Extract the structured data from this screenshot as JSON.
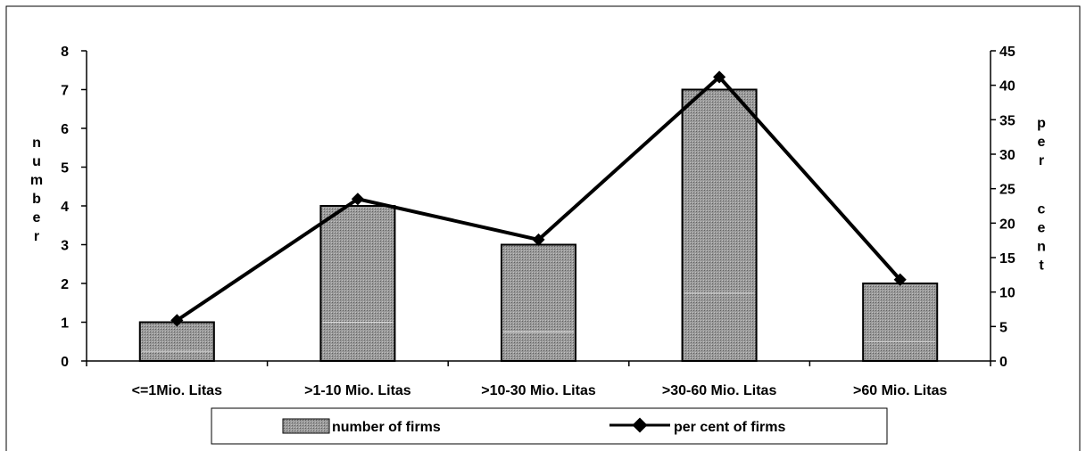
{
  "chart_data": {
    "type": "bar",
    "categories": [
      "<=1Mio. Litas",
      ">1-10 Mio. Litas",
      ">10-30 Mio. Litas",
      ">30-60 Mio. Litas",
      ">60 Mio. Litas"
    ],
    "series": [
      {
        "name": "number of firms",
        "type": "bar",
        "axis": "left",
        "values": [
          1,
          4,
          3,
          7,
          2
        ],
        "color": "#8c8c8c"
      },
      {
        "name": "per cent of firms",
        "type": "line",
        "axis": "right",
        "values": [
          5.9,
          23.5,
          17.6,
          41.2,
          11.8
        ],
        "color": "#000000"
      }
    ],
    "title": "",
    "ylabel": "number",
    "y2label": "per cent",
    "ylim": [
      0,
      8
    ],
    "y2lim": [
      0,
      45
    ],
    "yticks": [
      "0",
      "1",
      "2",
      "3",
      "4",
      "5",
      "6",
      "7",
      "8"
    ],
    "y2ticks": [
      "0",
      "5",
      "10",
      "15",
      "20",
      "25",
      "30",
      "35",
      "40",
      "45"
    ],
    "grid": false,
    "legend": "bottom"
  }
}
